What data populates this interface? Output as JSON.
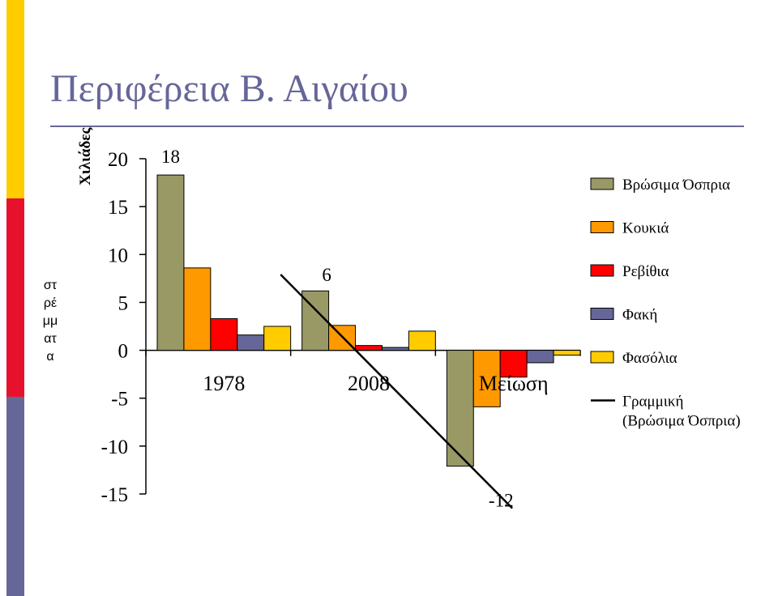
{
  "title": "Περιφέρεια Β. Αιγαίου",
  "y_unit": "Χιλιάδες",
  "y_axis_label": "στρέμματα",
  "colors": {
    "strip_yellow": "#FFCC00",
    "strip_red": "#E8112D",
    "strip_blue": "#666699",
    "title": "#666699"
  },
  "chart_data": {
    "type": "bar",
    "title": "",
    "xlabel": "",
    "ylabel": "στρέμματα",
    "ylim": [
      -15,
      20
    ],
    "yticks": [
      20,
      15,
      10,
      5,
      0,
      -5,
      -10,
      -15
    ],
    "categories": [
      "1978",
      "2008",
      "Μείωση"
    ],
    "series": [
      {
        "name": "Βρώσιμα Όσπρια",
        "color": "#999966",
        "values": [
          18.3,
          6.2,
          -12.1
        ]
      },
      {
        "name": "Κουκιά",
        "color": "#FF9900",
        "values": [
          8.6,
          2.6,
          -5.9
        ]
      },
      {
        "name": "Ρεβίθια",
        "color": "#FF0000",
        "values": [
          3.3,
          0.5,
          -2.8
        ]
      },
      {
        "name": "Φακή",
        "color": "#666699",
        "values": [
          1.6,
          0.3,
          -1.3
        ]
      },
      {
        "name": "Φασόλια",
        "color": "#FFCC00",
        "values": [
          2.5,
          2.0,
          -0.5
        ]
      }
    ],
    "data_labels": [
      {
        "text": "18",
        "category": "1978",
        "series": "Βρώσιμα Όσπρια"
      },
      {
        "text": "6",
        "category": "2008",
        "series": "Βρώσιμα Όσπρια"
      },
      {
        "text": "-12",
        "category": "Μείωση",
        "series": "Βρώσιμα Όσπρια"
      }
    ],
    "trendline": {
      "name": "Γραμμική (Βρώσιμα Όσπρια)",
      "legend_lines": [
        "Γραμμική",
        "(Βρώσιμα Όσπρια)"
      ],
      "series": "Βρώσιμα Όσπρια",
      "color": "#000000",
      "start": {
        "x": "1978",
        "y": 19.5
      },
      "end": {
        "x": "Μείωση",
        "y": -11.0
      }
    },
    "legend_position": "right",
    "grid": false
  }
}
